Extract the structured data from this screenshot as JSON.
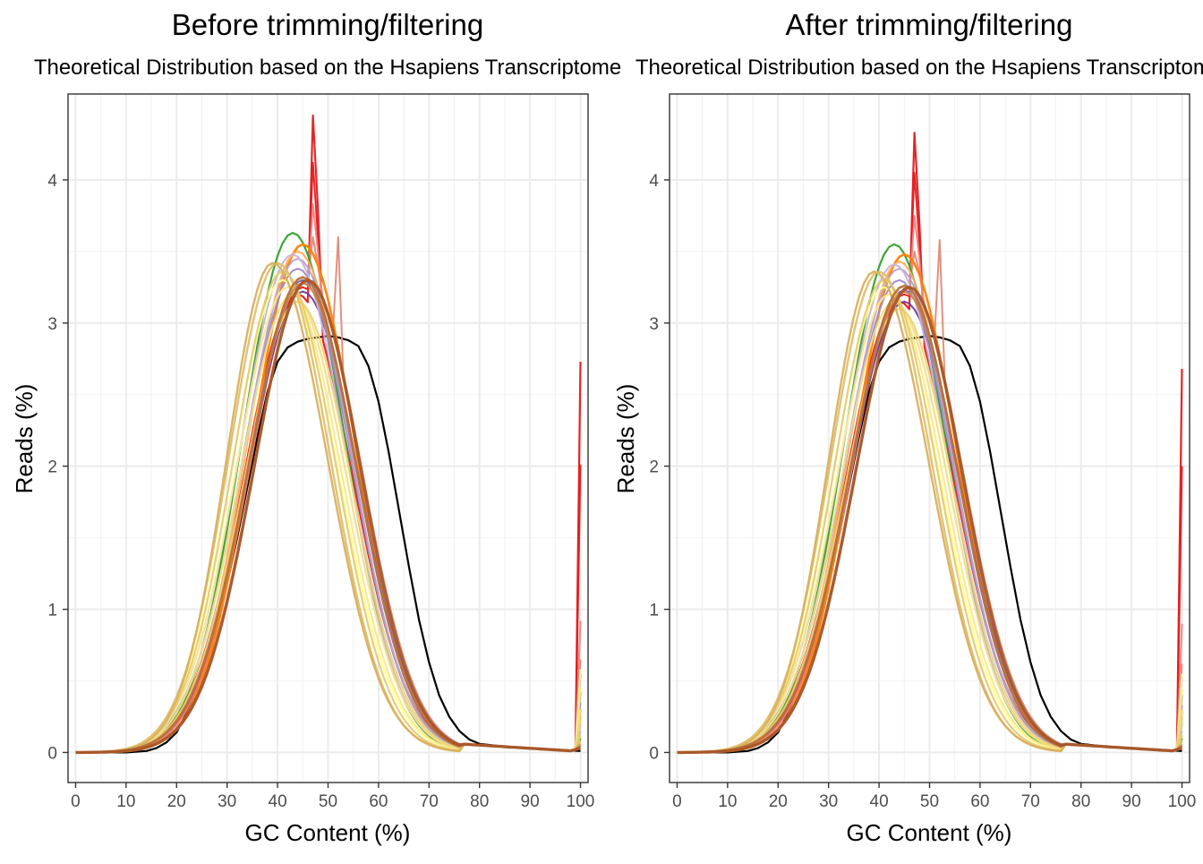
{
  "chart_data": [
    {
      "type": "line",
      "title": "Before trimming/filtering",
      "subtitle": "Theoretical Distribution based on the Hsapiens Transcriptome",
      "xlabel": "GC Content (%)",
      "ylabel": "Reads (%)",
      "xlim": [
        -1.5,
        101.5
      ],
      "ylim": [
        -0.21,
        4.6
      ],
      "xticks": [
        0,
        10,
        20,
        30,
        40,
        50,
        60,
        70,
        80,
        90,
        100
      ],
      "yticks": [
        0,
        1,
        2,
        3,
        4
      ],
      "grid": true,
      "legend": "none",
      "theoretical": {
        "color": "#000000",
        "points": [
          [
            0,
            0
          ],
          [
            10,
            0
          ],
          [
            14,
            0.01
          ],
          [
            16,
            0.03
          ],
          [
            18,
            0.07
          ],
          [
            20,
            0.14
          ],
          [
            22,
            0.28
          ],
          [
            24,
            0.45
          ],
          [
            26,
            0.68
          ],
          [
            28,
            0.92
          ],
          [
            30,
            1.18
          ],
          [
            32,
            1.5
          ],
          [
            34,
            1.85
          ],
          [
            36,
            2.2
          ],
          [
            38,
            2.52
          ],
          [
            40,
            2.73
          ],
          [
            42,
            2.83
          ],
          [
            44,
            2.87
          ],
          [
            46,
            2.89
          ],
          [
            48,
            2.9
          ],
          [
            50,
            2.91
          ],
          [
            52,
            2.9
          ],
          [
            54,
            2.88
          ],
          [
            56,
            2.84
          ],
          [
            58,
            2.7
          ],
          [
            60,
            2.45
          ],
          [
            62,
            2.1
          ],
          [
            64,
            1.7
          ],
          [
            66,
            1.3
          ],
          [
            68,
            0.93
          ],
          [
            70,
            0.63
          ],
          [
            72,
            0.4
          ],
          [
            74,
            0.25
          ],
          [
            76,
            0.15
          ],
          [
            78,
            0.09
          ],
          [
            80,
            0.06
          ],
          [
            85,
            0.04
          ],
          [
            90,
            0.03
          ],
          [
            95,
            0.02
          ],
          [
            100,
            0.01
          ]
        ]
      },
      "series": [
        {
          "color": "#e41a1c",
          "width": 2.2,
          "peak_x": 44,
          "peak_y": 3.2,
          "sd_left": 10.6,
          "sd_right": 10.8,
          "spike_47": 4.45,
          "spike_48": 3.8,
          "spike_100": 2.73
        },
        {
          "color": "#e41a1c",
          "width": 2.0,
          "peak_x": 45,
          "peak_y": 3.25,
          "sd_left": 10.6,
          "sd_right": 10.8,
          "spike_47": 4.12,
          "spike_48": 3.6,
          "spike_100": 2.01
        },
        {
          "color": "#f08080",
          "width": 2.0,
          "peak_x": 45,
          "peak_y": 3.28,
          "sd_left": 10.5,
          "sd_right": 10.7,
          "spike_47": 3.83,
          "spike_48": 3.5,
          "spike_100": 0.92
        },
        {
          "color": "#e08a78",
          "width": 2.0,
          "peak_x": 46,
          "peak_y": 3.3,
          "sd_left": 10.5,
          "sd_right": 10.6,
          "spike_47": 3.6,
          "spike_48": 3.4,
          "spike_100": 0.65,
          "spike_52": 3.6
        },
        {
          "color": "#33a02c",
          "width": 2.2,
          "peak_x": 43,
          "peak_y": 3.63,
          "sd_left": 10.0,
          "sd_right": 10.3,
          "spike_100": 0.1
        },
        {
          "color": "#ff7f00",
          "width": 2.6,
          "peak_x": 45,
          "peak_y": 3.55,
          "sd_left": 10.1,
          "sd_right": 10.4,
          "spike_100": 0.3
        },
        {
          "color": "#fdae61",
          "width": 2.2,
          "peak_x": 44,
          "peak_y": 3.5,
          "sd_left": 10.2,
          "sd_right": 10.5,
          "spike_100": 0.25
        },
        {
          "color": "#6a3d9a",
          "width": 2.0,
          "peak_x": 45,
          "peak_y": 3.22,
          "sd_left": 11.0,
          "sd_right": 10.8,
          "spike_100": 0.55
        },
        {
          "color": "#7b62b0",
          "width": 2.0,
          "peak_x": 45,
          "peak_y": 3.3,
          "sd_left": 10.9,
          "sd_right": 10.7,
          "spike_100": 0.42
        },
        {
          "color": "#9e8ac8",
          "width": 2.0,
          "peak_x": 44,
          "peak_y": 3.38,
          "sd_left": 10.8,
          "sd_right": 10.6,
          "spike_100": 0.35
        },
        {
          "color": "#b3a2d6",
          "width": 2.0,
          "peak_x": 44,
          "peak_y": 3.45,
          "sd_left": 10.7,
          "sd_right": 10.6,
          "spike_100": 0.2
        },
        {
          "color": "#cab2d6",
          "width": 2.0,
          "peak_x": 43,
          "peak_y": 3.48,
          "sd_left": 10.5,
          "sd_right": 10.5,
          "spike_100": 0.15
        },
        {
          "color": "#ffff99",
          "width": 2.2,
          "peak_x": 41,
          "peak_y": 3.3,
          "sd_left": 10.0,
          "sd_right": 10.8,
          "spike_100": 0.58
        },
        {
          "color": "#fbe98a",
          "width": 2.2,
          "peak_x": 42,
          "peak_y": 3.25,
          "sd_left": 10.2,
          "sd_right": 10.6,
          "spike_100": 0.45
        },
        {
          "color": "#f3df7f",
          "width": 2.2,
          "peak_x": 43,
          "peak_y": 3.2,
          "sd_left": 10.4,
          "sd_right": 10.6,
          "spike_100": 0.3
        },
        {
          "color": "#ecd478",
          "width": 2.2,
          "peak_x": 44,
          "peak_y": 3.15,
          "sd_left": 10.6,
          "sd_right": 10.5,
          "spike_100": 0.22
        },
        {
          "color": "#e5cb72",
          "width": 2.2,
          "peak_x": 41,
          "peak_y": 3.36,
          "sd_left": 9.8,
          "sd_right": 10.4,
          "spike_100": 0.12
        },
        {
          "color": "#dfc06a",
          "width": 2.4,
          "peak_x": 40,
          "peak_y": 3.42,
          "sd_left": 9.6,
          "sd_right": 10.4,
          "spike_100": 0.08
        },
        {
          "color": "#d8b060",
          "width": 2.4,
          "peak_x": 39,
          "peak_y": 3.42,
          "sd_left": 9.0,
          "sd_right": 10.8,
          "spike_100": 0.06
        },
        {
          "color": "#c98a4a",
          "width": 2.4,
          "peak_x": 45,
          "peak_y": 3.28,
          "sd_left": 10.8,
          "sd_right": 10.6,
          "spike_100": 0.05
        },
        {
          "color": "#b8703a",
          "width": 2.6,
          "peak_x": 45,
          "peak_y": 3.32,
          "sd_left": 10.7,
          "sd_right": 10.5,
          "spike_100": 0.04
        },
        {
          "color": "#a65628",
          "width": 3.4,
          "peak_x": 46,
          "peak_y": 3.3,
          "sd_left": 10.6,
          "sd_right": 10.4,
          "spike_100": 0.03
        }
      ]
    },
    {
      "type": "line",
      "title": "After trimming/filtering",
      "subtitle": "Theoretical Distribution based on the Hsapiens Transcriptome",
      "xlabel": "GC Content (%)",
      "ylabel": "Reads (%)",
      "xlim": [
        -1.5,
        101.5
      ],
      "ylim": [
        -0.21,
        4.6
      ],
      "xticks": [
        0,
        10,
        20,
        30,
        40,
        50,
        60,
        70,
        80,
        90,
        100
      ],
      "yticks": [
        0,
        1,
        2,
        3,
        4
      ],
      "grid": true,
      "legend": "none",
      "theoretical": {
        "color": "#000000",
        "points": [
          [
            0,
            0
          ],
          [
            10,
            0
          ],
          [
            14,
            0.01
          ],
          [
            16,
            0.03
          ],
          [
            18,
            0.07
          ],
          [
            20,
            0.14
          ],
          [
            22,
            0.28
          ],
          [
            24,
            0.45
          ],
          [
            26,
            0.68
          ],
          [
            28,
            0.92
          ],
          [
            30,
            1.18
          ],
          [
            32,
            1.5
          ],
          [
            34,
            1.85
          ],
          [
            36,
            2.2
          ],
          [
            38,
            2.52
          ],
          [
            40,
            2.73
          ],
          [
            42,
            2.83
          ],
          [
            44,
            2.87
          ],
          [
            46,
            2.89
          ],
          [
            48,
            2.9
          ],
          [
            50,
            2.91
          ],
          [
            52,
            2.9
          ],
          [
            54,
            2.88
          ],
          [
            56,
            2.84
          ],
          [
            58,
            2.7
          ],
          [
            60,
            2.45
          ],
          [
            62,
            2.1
          ],
          [
            64,
            1.7
          ],
          [
            66,
            1.3
          ],
          [
            68,
            0.93
          ],
          [
            70,
            0.63
          ],
          [
            72,
            0.4
          ],
          [
            74,
            0.25
          ],
          [
            76,
            0.15
          ],
          [
            78,
            0.09
          ],
          [
            80,
            0.06
          ],
          [
            85,
            0.04
          ],
          [
            90,
            0.03
          ],
          [
            95,
            0.02
          ],
          [
            100,
            0.01
          ]
        ]
      },
      "series": [
        {
          "color": "#e41a1c",
          "width": 2.2,
          "peak_x": 44,
          "peak_y": 3.15,
          "sd_left": 10.6,
          "sd_right": 10.8,
          "spike_47": 4.33,
          "spike_48": 3.7,
          "spike_100": 2.68
        },
        {
          "color": "#e41a1c",
          "width": 2.0,
          "peak_x": 45,
          "peak_y": 3.2,
          "sd_left": 10.6,
          "sd_right": 10.8,
          "spike_47": 4.05,
          "spike_48": 3.55,
          "spike_100": 2.0
        },
        {
          "color": "#f08080",
          "width": 2.0,
          "peak_x": 45,
          "peak_y": 3.22,
          "sd_left": 10.5,
          "sd_right": 10.7,
          "spike_47": 3.75,
          "spike_48": 3.45,
          "spike_100": 0.9
        },
        {
          "color": "#e08a78",
          "width": 2.0,
          "peak_x": 46,
          "peak_y": 3.25,
          "sd_left": 10.5,
          "sd_right": 10.6,
          "spike_47": 3.5,
          "spike_48": 3.35,
          "spike_100": 0.62,
          "spike_52": 3.58
        },
        {
          "color": "#33a02c",
          "width": 2.2,
          "peak_x": 43,
          "peak_y": 3.55,
          "sd_left": 10.0,
          "sd_right": 10.3,
          "spike_100": 0.1
        },
        {
          "color": "#ff7f00",
          "width": 2.6,
          "peak_x": 45,
          "peak_y": 3.48,
          "sd_left": 10.1,
          "sd_right": 10.4,
          "spike_100": 0.3
        },
        {
          "color": "#fdae61",
          "width": 2.2,
          "peak_x": 44,
          "peak_y": 3.43,
          "sd_left": 10.2,
          "sd_right": 10.5,
          "spike_100": 0.25
        },
        {
          "color": "#6a3d9a",
          "width": 2.0,
          "peak_x": 45,
          "peak_y": 3.15,
          "sd_left": 11.0,
          "sd_right": 10.8,
          "spike_100": 0.53
        },
        {
          "color": "#7b62b0",
          "width": 2.0,
          "peak_x": 45,
          "peak_y": 3.23,
          "sd_left": 10.9,
          "sd_right": 10.7,
          "spike_100": 0.4
        },
        {
          "color": "#9e8ac8",
          "width": 2.0,
          "peak_x": 44,
          "peak_y": 3.3,
          "sd_left": 10.8,
          "sd_right": 10.6,
          "spike_100": 0.33
        },
        {
          "color": "#b3a2d6",
          "width": 2.0,
          "peak_x": 44,
          "peak_y": 3.38,
          "sd_left": 10.7,
          "sd_right": 10.6,
          "spike_100": 0.2
        },
        {
          "color": "#cab2d6",
          "width": 2.0,
          "peak_x": 43,
          "peak_y": 3.41,
          "sd_left": 10.5,
          "sd_right": 10.5,
          "spike_100": 0.15
        },
        {
          "color": "#ffff99",
          "width": 2.2,
          "peak_x": 41,
          "peak_y": 3.25,
          "sd_left": 10.0,
          "sd_right": 10.8,
          "spike_100": 0.55
        },
        {
          "color": "#fbe98a",
          "width": 2.2,
          "peak_x": 42,
          "peak_y": 3.2,
          "sd_left": 10.2,
          "sd_right": 10.6,
          "spike_100": 0.43
        },
        {
          "color": "#f3df7f",
          "width": 2.2,
          "peak_x": 43,
          "peak_y": 3.15,
          "sd_left": 10.4,
          "sd_right": 10.6,
          "spike_100": 0.3
        },
        {
          "color": "#ecd478",
          "width": 2.2,
          "peak_x": 44,
          "peak_y": 3.1,
          "sd_left": 10.6,
          "sd_right": 10.5,
          "spike_100": 0.22
        },
        {
          "color": "#e5cb72",
          "width": 2.2,
          "peak_x": 41,
          "peak_y": 3.3,
          "sd_left": 9.8,
          "sd_right": 10.4,
          "spike_100": 0.12
        },
        {
          "color": "#dfc06a",
          "width": 2.4,
          "peak_x": 40,
          "peak_y": 3.36,
          "sd_left": 9.6,
          "sd_right": 10.4,
          "spike_100": 0.08
        },
        {
          "color": "#d8b060",
          "width": 2.4,
          "peak_x": 39,
          "peak_y": 3.36,
          "sd_left": 9.0,
          "sd_right": 10.8,
          "spike_100": 0.06
        },
        {
          "color": "#c98a4a",
          "width": 2.4,
          "peak_x": 45,
          "peak_y": 3.22,
          "sd_left": 10.8,
          "sd_right": 10.6,
          "spike_100": 0.05
        },
        {
          "color": "#b8703a",
          "width": 2.6,
          "peak_x": 45,
          "peak_y": 3.26,
          "sd_left": 10.7,
          "sd_right": 10.5,
          "spike_100": 0.04
        },
        {
          "color": "#a65628",
          "width": 3.4,
          "peak_x": 46,
          "peak_y": 3.25,
          "sd_left": 10.6,
          "sd_right": 10.4,
          "spike_100": 0.03
        }
      ]
    }
  ]
}
